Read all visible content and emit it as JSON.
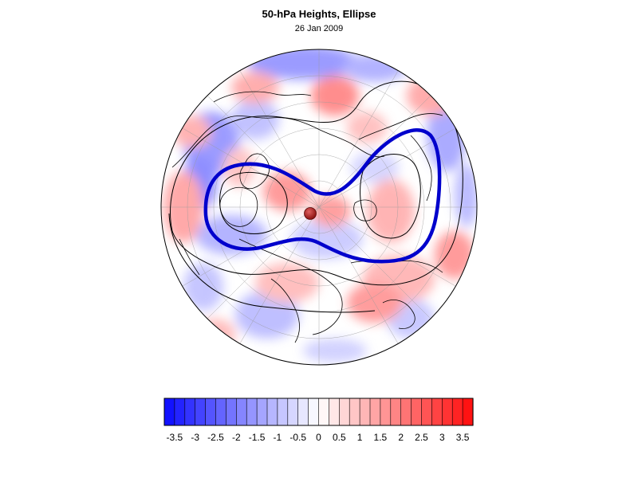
{
  "title": "50-hPa Heights, Ellipse",
  "subtitle": "26 Jan 2009",
  "colors": {
    "negative_max": "#0a0aff",
    "neutral": "#ffffff",
    "positive_max": "#ff0a0a",
    "ellipse_line": "#0000cc",
    "contour_line": "#000000",
    "center_marker": "#b81818"
  },
  "colorbar": {
    "min": -3.75,
    "max": 3.75,
    "step": 0.25,
    "tick_labels": [
      "-3.5",
      "-3",
      "-2.5",
      "-2",
      "-1.5",
      "-1",
      "-0.5",
      "0",
      "0.5",
      "1",
      "1.5",
      "2",
      "2.5",
      "3",
      "3.5"
    ]
  },
  "map": {
    "projection": "polar-stereographic-north",
    "features": [
      "coastlines",
      "graticule",
      "anomaly-shading",
      "height-contours",
      "ellipse-fit",
      "centroid-marker"
    ]
  }
}
